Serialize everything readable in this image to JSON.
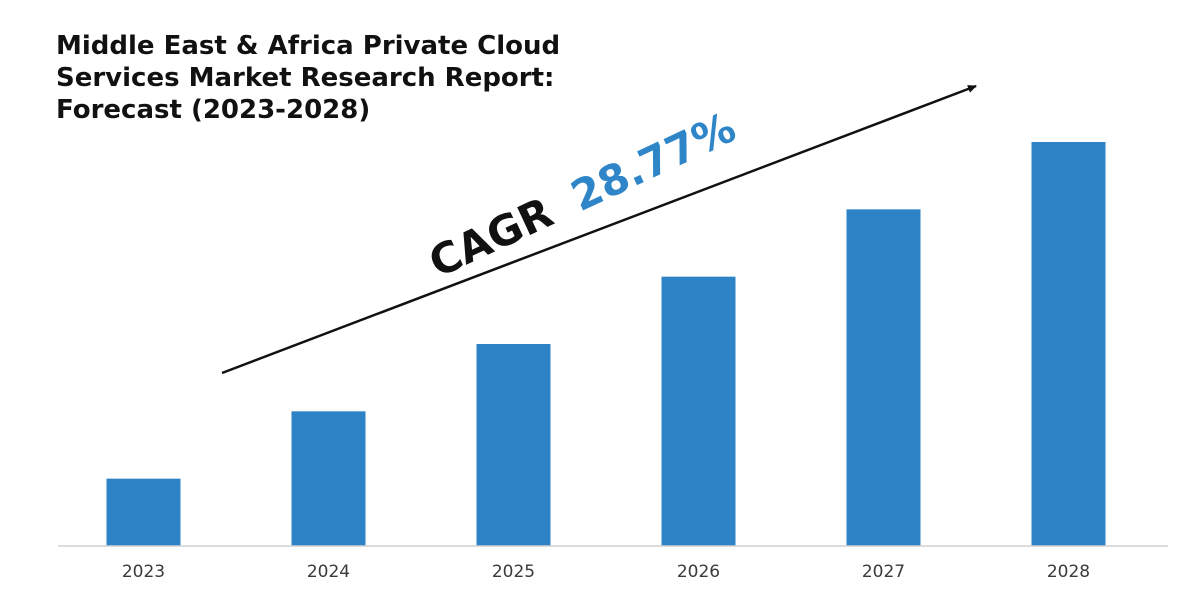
{
  "title": {
    "line1": "Middle East & Africa Private Cloud",
    "line2": "Services Market Research Report:",
    "line3": "Forecast (2023-2028)"
  },
  "annotation": {
    "prefix": "CAGR",
    "value": "28.77%",
    "prefix_color": "#111111",
    "value_color": "#2E86C8"
  },
  "colors": {
    "bar": "#2E83C6",
    "axis": "#d0d0d0",
    "arrow": "#111111"
  },
  "chart_data": {
    "type": "bar",
    "title": "Middle East & Africa Private Cloud Services Market Research Report: Forecast (2023-2028)",
    "xlabel": "",
    "ylabel": "",
    "categories": [
      "2023",
      "2024",
      "2025",
      "2026",
      "2027",
      "2028"
    ],
    "values": [
      1.0,
      2.0,
      3.0,
      4.0,
      5.0,
      6.0
    ],
    "ylim": [
      0,
      6
    ],
    "grid": false,
    "annotation": "CAGR 28.77%"
  }
}
